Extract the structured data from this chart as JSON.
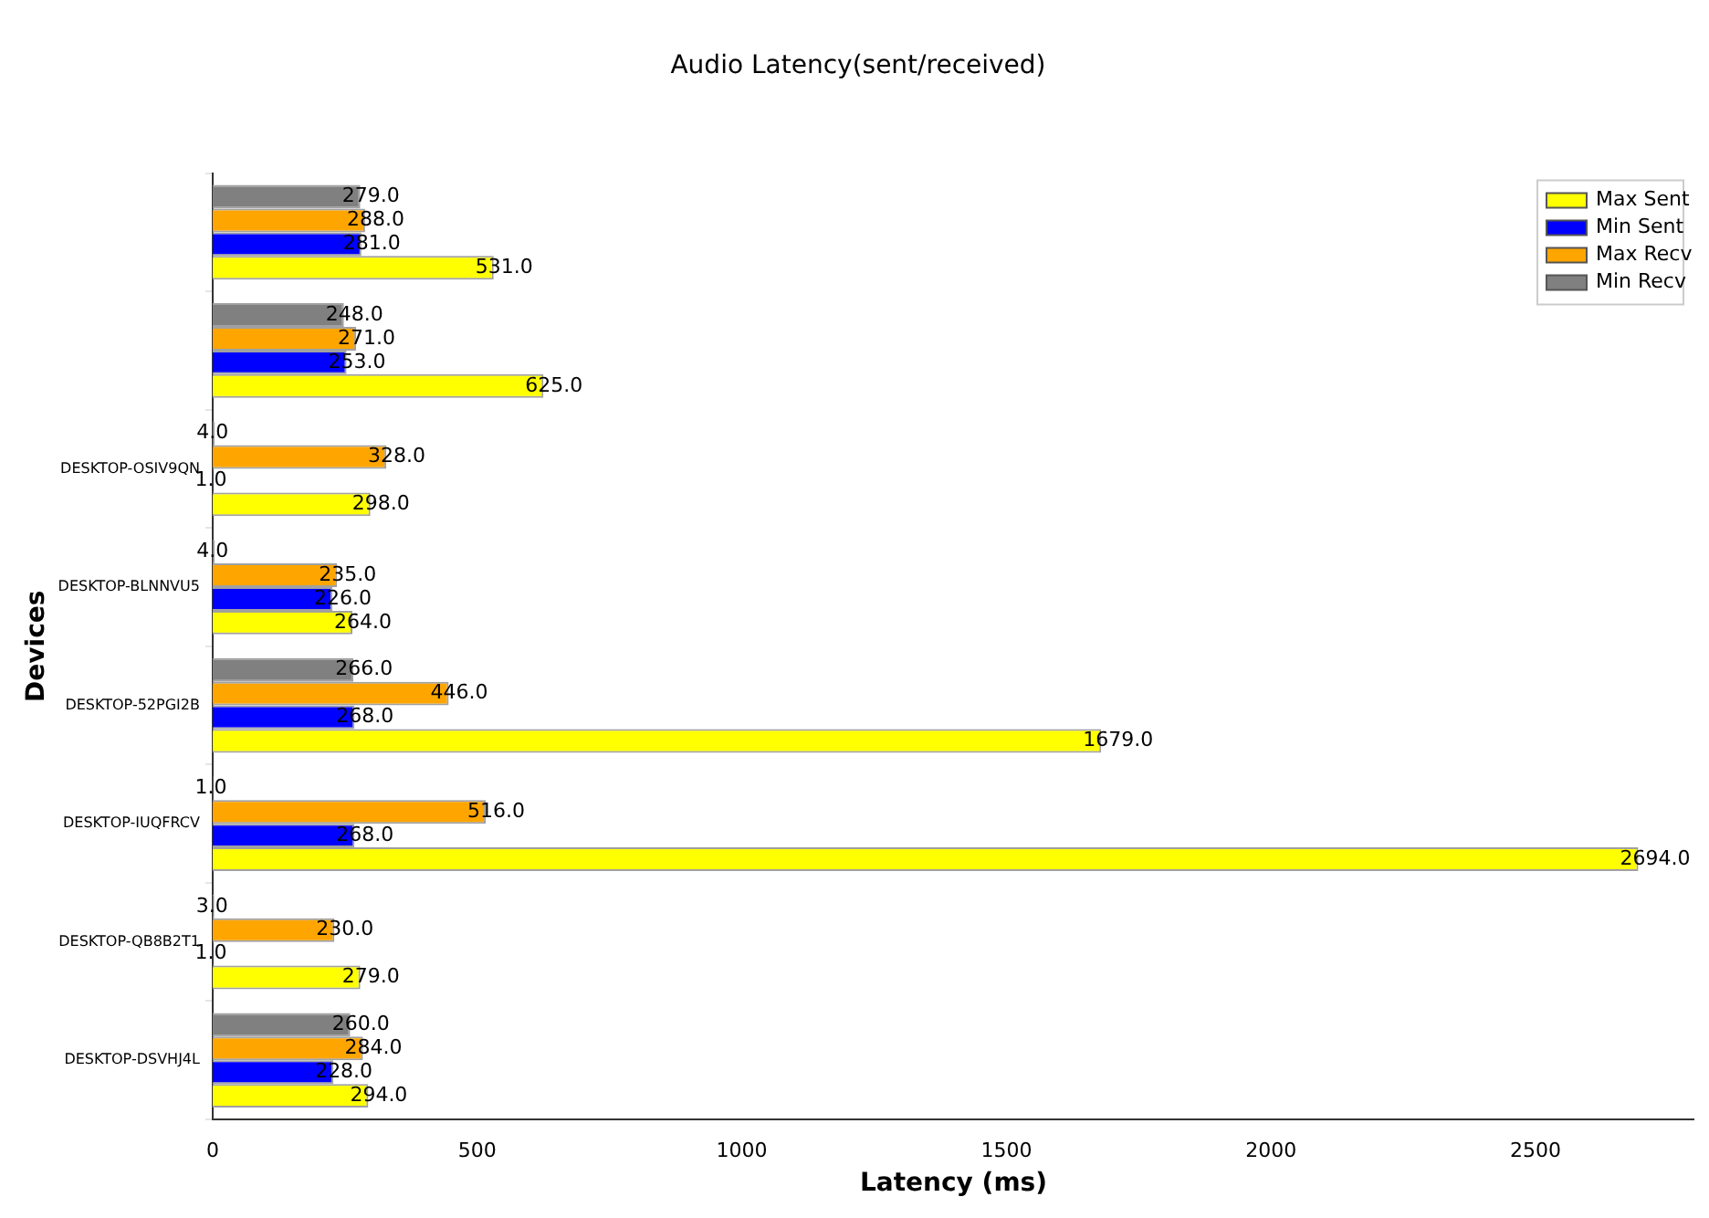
{
  "chart_data": {
    "type": "bar",
    "orientation": "horizontal",
    "title": "Audio Latency(sent/received)",
    "xlabel": "Latency (ms)",
    "ylabel": "Devices",
    "categories": [
      null,
      null,
      "DESKTOP-OSIV9QN",
      "DESKTOP-BLNNVU5",
      "DESKTOP-52PGI2B",
      "DESKTOP-IUQFRCV",
      "DESKTOP-QB8B2T1",
      "DESKTOP-DSVHJ4L"
    ],
    "series": [
      {
        "name": "Max Sent",
        "color": "#ffff00",
        "values": [
          531,
          625,
          298,
          264,
          1679,
          2694,
          279,
          294
        ],
        "value_labels": [
          "531.0",
          "625.0",
          "298.0",
          "264.0",
          "1679.0",
          "2694.0",
          "279.0",
          "294.0"
        ]
      },
      {
        "name": "Min Sent",
        "color": "#0000ff",
        "values": [
          281,
          253,
          1,
          226,
          268,
          268,
          1,
          228
        ],
        "value_labels": [
          "281.0",
          "253.0",
          "1.0",
          "226.0",
          "268.0",
          "268.0",
          "1.0",
          "228.0"
        ]
      },
      {
        "name": "Max Recv",
        "color": "#ffa500",
        "values": [
          288,
          271,
          328,
          235,
          446,
          516,
          230,
          284
        ],
        "value_labels": [
          "288.0",
          "271.0",
          "328.0",
          "235.0",
          "446.0",
          "516.0",
          "230.0",
          "284.0"
        ]
      },
      {
        "name": "Min Recv",
        "color": "#808080",
        "values": [
          279,
          248,
          4,
          4,
          266,
          1,
          3,
          260
        ],
        "value_labels": [
          "279.0",
          "248.0",
          "4.0",
          "4.0",
          "266.0",
          "1.0",
          "3.0",
          "260.0"
        ]
      }
    ],
    "xlim": [
      0,
      2800
    ],
    "xticks": [
      0,
      500,
      1000,
      1500,
      2000,
      2500
    ],
    "grid": false,
    "legend": "top right"
  }
}
